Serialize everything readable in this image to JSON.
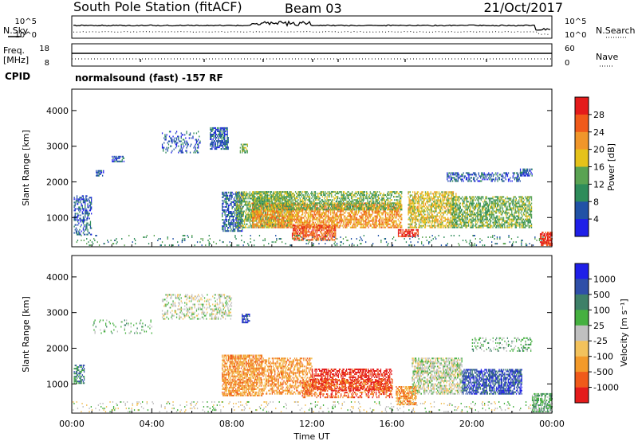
{
  "header": {
    "station": "South Pole Station (fitACF)",
    "beam": "Beam 03",
    "date": "21/Oct/2017",
    "mode": "normalsound (fast) -157 RF"
  },
  "status_panels": {
    "nsky_label": "N.Sky",
    "nsky_ticks": [
      "10^5",
      "10^0"
    ],
    "nsearch_label": "N.Search",
    "nsearch_ticks": [
      "10^5",
      "10^0"
    ],
    "freq_label": "Freq.",
    "freq_unit": "[MHz]",
    "freq_ticks": [
      "18",
      "8"
    ],
    "nave_label": "Nave",
    "nave_ticks": [
      "60",
      "0"
    ],
    "cpid_label": "CPID"
  },
  "colors": {
    "power": [
      "#1f1fe8",
      "#2152a6",
      "#2e8c5a",
      "#5aa352",
      "#e5c21a",
      "#f0962a",
      "#f05a1a",
      "#e41b1b"
    ],
    "velocity": [
      "#1f1fe8",
      "#2f4fa8",
      "#3e8068",
      "#45b040",
      "#c0c0c0",
      "#f3c25c",
      "#f39a2a",
      "#f05a1a",
      "#e41b1b"
    ]
  },
  "chart_data": [
    {
      "type": "heatmap",
      "name": "power",
      "ylabel": "Slant Range [km]",
      "ylim": [
        180,
        4600
      ],
      "yticks": [
        "1000",
        "2000",
        "3000",
        "4000"
      ],
      "xlim": [
        0,
        24
      ],
      "xticks": [
        "00:00",
        "04:00",
        "08:00",
        "12:00",
        "16:00",
        "20:00",
        "00:00"
      ],
      "colorbar": {
        "label": "Power [dB]",
        "ticks": [
          "4",
          "8",
          "12",
          "16",
          "20",
          "24",
          "28"
        ],
        "range": [
          0,
          32
        ]
      },
      "regions": [
        {
          "t": [
            0.1,
            1.0
          ],
          "r": [
            500,
            1600
          ],
          "bin": 1,
          "density": 0.45
        },
        {
          "t": [
            1.2,
            1.6
          ],
          "r": [
            2150,
            2300
          ],
          "bin": 1,
          "density": 0.6
        },
        {
          "t": [
            2.0,
            2.6
          ],
          "r": [
            2550,
            2700
          ],
          "bin": 1,
          "density": 0.5
        },
        {
          "t": [
            4.5,
            6.4
          ],
          "r": [
            2800,
            3400
          ],
          "bin": 1,
          "density": 0.25
        },
        {
          "t": [
            6.9,
            7.8
          ],
          "r": [
            2900,
            3500
          ],
          "bin": 1,
          "density": 0.65
        },
        {
          "t": [
            8.4,
            8.8
          ],
          "r": [
            2800,
            3050
          ],
          "bin": 3,
          "density": 0.6
        },
        {
          "t": [
            7.5,
            8.5
          ],
          "r": [
            600,
            1700
          ],
          "bin": 1,
          "density": 0.6
        },
        {
          "t": [
            8.2,
            11.0
          ],
          "r": [
            700,
            1700
          ],
          "bin": 3,
          "density": 0.6
        },
        {
          "t": [
            9.0,
            16.5
          ],
          "r": [
            700,
            1400
          ],
          "bin": 5,
          "density": 0.65
        },
        {
          "t": [
            9.0,
            16.5
          ],
          "r": [
            1200,
            1700
          ],
          "bin": 3,
          "density": 0.55
        },
        {
          "t": [
            11.0,
            13.2
          ],
          "r": [
            350,
            800
          ],
          "bin": 6,
          "density": 0.7
        },
        {
          "t": [
            16.3,
            17.3
          ],
          "r": [
            450,
            650
          ],
          "bin": 7,
          "density": 0.8
        },
        {
          "t": [
            16.8,
            19.2
          ],
          "r": [
            700,
            1700
          ],
          "bin": 4,
          "density": 0.6
        },
        {
          "t": [
            19.0,
            23.0
          ],
          "r": [
            700,
            1600
          ],
          "bin": 3,
          "density": 0.6
        },
        {
          "t": [
            18.7,
            22.4
          ],
          "r": [
            2000,
            2250
          ],
          "bin": 1,
          "density": 0.45
        },
        {
          "t": [
            22.4,
            23.0
          ],
          "r": [
            2150,
            2350
          ],
          "bin": 1,
          "density": 0.7
        },
        {
          "t": [
            0.0,
            24.0
          ],
          "r": [
            200,
            480
          ],
          "bin": 2,
          "density": 0.08
        },
        {
          "t": [
            23.4,
            24.0
          ],
          "r": [
            200,
            600
          ],
          "bin": 7,
          "density": 0.8
        }
      ]
    },
    {
      "type": "heatmap",
      "name": "velocity",
      "ylabel": "Slant Range [km]",
      "ylim": [
        180,
        4600
      ],
      "yticks": [
        "1000",
        "2000",
        "3000",
        "4000"
      ],
      "xlim": [
        0,
        24
      ],
      "xticks": [
        "00:00",
        "04:00",
        "08:00",
        "12:00",
        "16:00",
        "20:00",
        "00:00"
      ],
      "xlabel": "Time UT",
      "colorbar": {
        "label": "Velocity [m s⁻¹]",
        "ticks": [
          "1000",
          "500",
          "100",
          "25",
          "-25",
          "-100",
          "-500",
          "-1000"
        ],
        "range": [
          0,
          9
        ]
      },
      "regions": [
        {
          "t": [
            0.1,
            0.6
          ],
          "r": [
            1000,
            1500
          ],
          "bin": 2,
          "density": 0.55
        },
        {
          "t": [
            1.0,
            4.0
          ],
          "r": [
            2400,
            2800
          ],
          "bin": 3,
          "density": 0.1
        },
        {
          "t": [
            4.5,
            8.0
          ],
          "r": [
            2800,
            3500
          ],
          "bin": 4,
          "density": 0.3
        },
        {
          "t": [
            8.5,
            8.9
          ],
          "r": [
            2700,
            2950
          ],
          "bin": 1,
          "density": 0.6
        },
        {
          "t": [
            7.5,
            9.5
          ],
          "r": [
            650,
            1800
          ],
          "bin": 6,
          "density": 0.7
        },
        {
          "t": [
            9.5,
            12.0
          ],
          "r": [
            700,
            1700
          ],
          "bin": 6,
          "density": 0.55
        },
        {
          "t": [
            12.0,
            16.0
          ],
          "r": [
            800,
            1400
          ],
          "bin": 8,
          "density": 0.55
        },
        {
          "t": [
            11.5,
            16.0
          ],
          "r": [
            600,
            1100
          ],
          "bin": 7,
          "density": 0.45
        },
        {
          "t": [
            16.2,
            17.2
          ],
          "r": [
            400,
            900
          ],
          "bin": 6,
          "density": 0.7
        },
        {
          "t": [
            17.0,
            19.5
          ],
          "r": [
            700,
            1700
          ],
          "bin": 4,
          "density": 0.55
        },
        {
          "t": [
            19.5,
            22.5
          ],
          "r": [
            700,
            1400
          ],
          "bin": 1,
          "density": 0.65
        },
        {
          "t": [
            20.0,
            23.0
          ],
          "r": [
            1900,
            2300
          ],
          "bin": 3,
          "density": 0.25
        },
        {
          "t": [
            0.0,
            24.0
          ],
          "r": [
            200,
            500
          ],
          "bin": 4,
          "density": 0.1
        },
        {
          "t": [
            23.0,
            24.0
          ],
          "r": [
            200,
            700
          ],
          "bin": 3,
          "density": 0.6
        }
      ]
    }
  ]
}
